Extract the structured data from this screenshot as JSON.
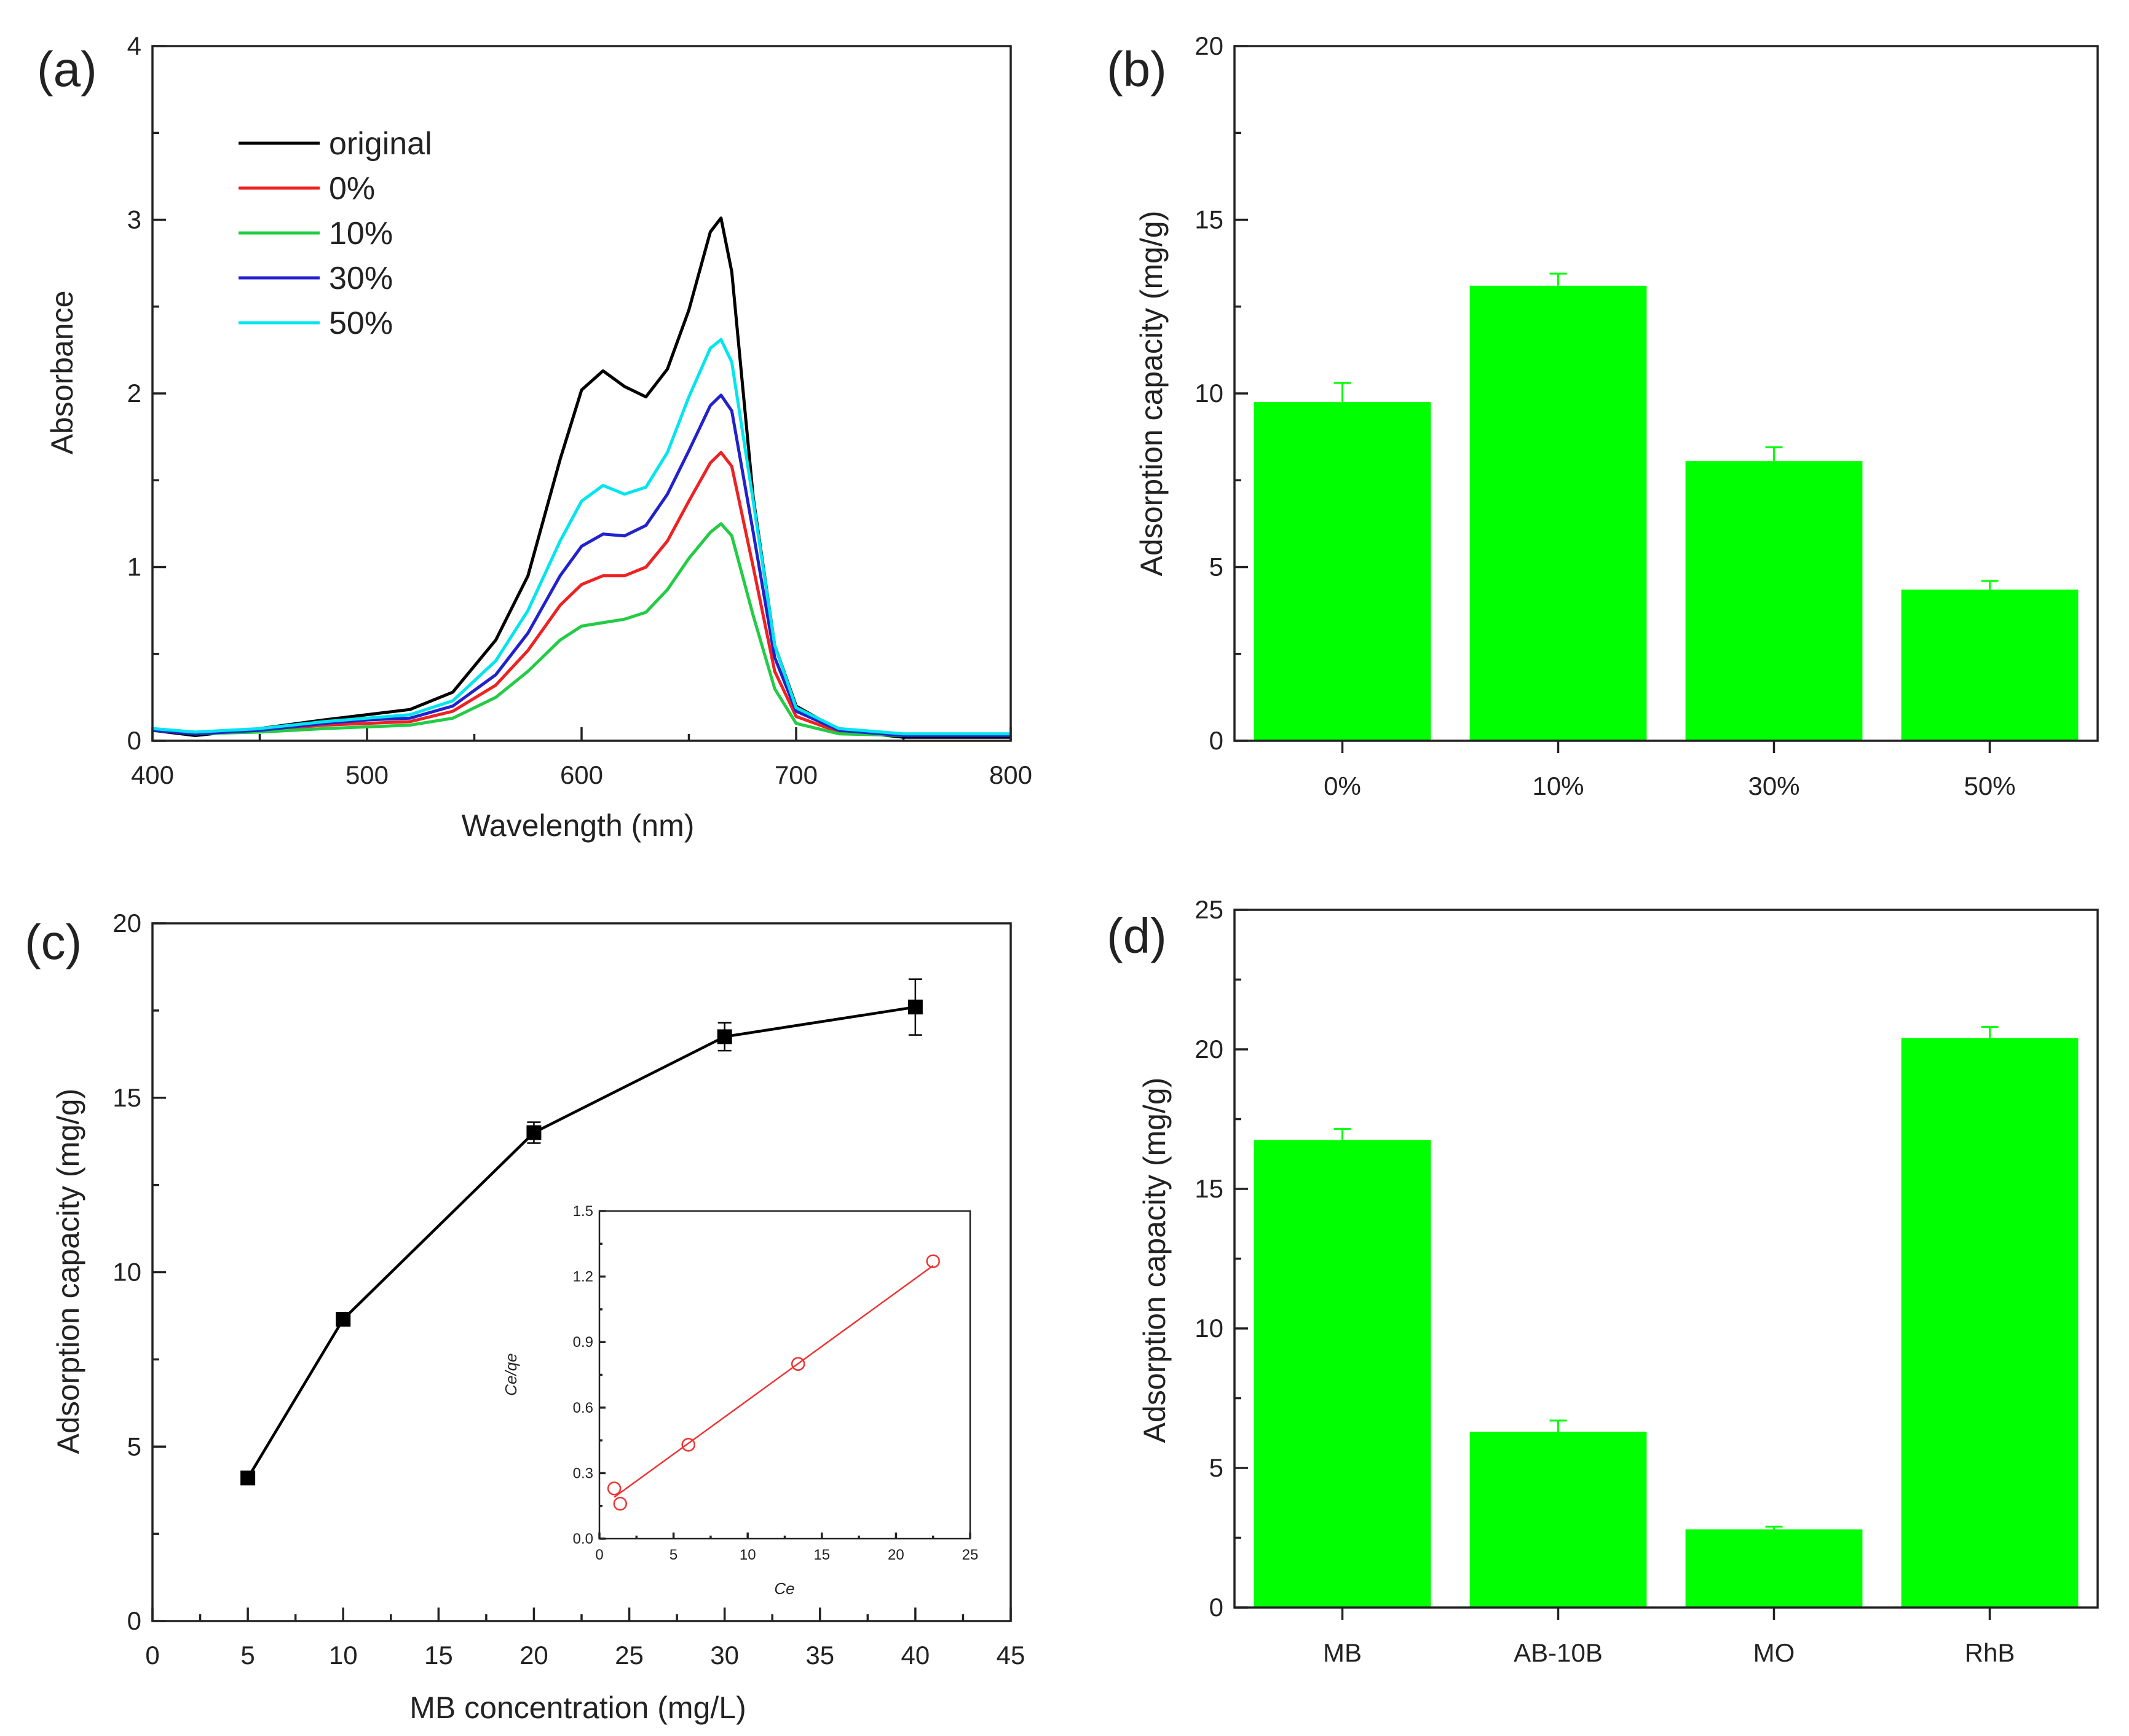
{
  "chart_data": [
    {
      "type": "line",
      "panel_label": "(a)",
      "title": "",
      "xlabel": "Wavelength (nm)",
      "ylabel": "Absorbance",
      "xlim": [
        400,
        800
      ],
      "ylim": [
        0,
        4
      ],
      "x_ticks": [
        400,
        500,
        600,
        700,
        800
      ],
      "y_ticks": [
        0,
        1,
        2,
        3,
        4
      ],
      "legend_position": "top-left",
      "series": [
        {
          "name": "original",
          "color": "#000000",
          "x": [
            400,
            420,
            450,
            480,
            500,
            520,
            540,
            560,
            575,
            590,
            600,
            610,
            620,
            630,
            640,
            650,
            660,
            665,
            670,
            680,
            690,
            700,
            720,
            750,
            800
          ],
          "y": [
            0.06,
            0.03,
            0.07,
            0.12,
            0.15,
            0.18,
            0.28,
            0.58,
            0.95,
            1.62,
            2.02,
            2.13,
            2.04,
            1.98,
            2.14,
            2.48,
            2.93,
            3.01,
            2.7,
            1.4,
            0.55,
            0.2,
            0.06,
            0.02,
            0.02
          ]
        },
        {
          "name": "0%",
          "color": "#ee2222",
          "x": [
            400,
            420,
            450,
            480,
            500,
            520,
            540,
            560,
            575,
            590,
            600,
            610,
            620,
            630,
            640,
            650,
            660,
            665,
            670,
            680,
            690,
            700,
            720,
            750,
            800
          ],
          "y": [
            0.06,
            0.04,
            0.06,
            0.09,
            0.1,
            0.11,
            0.17,
            0.32,
            0.52,
            0.78,
            0.9,
            0.95,
            0.95,
            1.0,
            1.15,
            1.38,
            1.6,
            1.66,
            1.58,
            1.0,
            0.4,
            0.14,
            0.05,
            0.03,
            0.03
          ]
        },
        {
          "name": "10%",
          "color": "#22cc44",
          "x": [
            400,
            420,
            450,
            480,
            500,
            520,
            540,
            560,
            575,
            590,
            600,
            610,
            620,
            630,
            640,
            650,
            660,
            665,
            670,
            680,
            690,
            700,
            720,
            750,
            800
          ],
          "y": [
            0.06,
            0.04,
            0.05,
            0.07,
            0.08,
            0.09,
            0.13,
            0.25,
            0.4,
            0.58,
            0.66,
            0.68,
            0.7,
            0.74,
            0.87,
            1.05,
            1.2,
            1.25,
            1.18,
            0.72,
            0.3,
            0.1,
            0.04,
            0.03,
            0.03
          ]
        },
        {
          "name": "30%",
          "color": "#2222cc",
          "x": [
            400,
            420,
            450,
            480,
            500,
            520,
            540,
            560,
            575,
            590,
            600,
            610,
            620,
            630,
            640,
            650,
            660,
            665,
            670,
            680,
            690,
            700,
            720,
            750,
            800
          ],
          "y": [
            0.06,
            0.04,
            0.06,
            0.1,
            0.12,
            0.13,
            0.2,
            0.38,
            0.62,
            0.95,
            1.12,
            1.19,
            1.18,
            1.24,
            1.42,
            1.67,
            1.93,
            1.99,
            1.9,
            1.2,
            0.48,
            0.17,
            0.06,
            0.03,
            0.03
          ]
        },
        {
          "name": "50%",
          "color": "#00e5ee",
          "x": [
            400,
            420,
            450,
            480,
            500,
            520,
            540,
            560,
            575,
            590,
            600,
            610,
            620,
            630,
            640,
            650,
            660,
            665,
            670,
            680,
            690,
            700,
            720,
            750,
            800
          ],
          "y": [
            0.07,
            0.05,
            0.07,
            0.11,
            0.13,
            0.15,
            0.23,
            0.46,
            0.75,
            1.15,
            1.38,
            1.47,
            1.42,
            1.46,
            1.66,
            1.98,
            2.26,
            2.31,
            2.18,
            1.38,
            0.55,
            0.19,
            0.07,
            0.04,
            0.04
          ]
        }
      ]
    },
    {
      "type": "bar",
      "panel_label": "(b)",
      "title": "",
      "xlabel": "",
      "ylabel": "Adsorption capacity (mg/g)",
      "ylim": [
        0,
        20
      ],
      "y_ticks": [
        0,
        5,
        10,
        15,
        20
      ],
      "bar_color": "#00ff00",
      "categories": [
        "0%",
        "10%",
        "30%",
        "50%"
      ],
      "values": [
        9.75,
        13.1,
        8.05,
        4.35
      ],
      "errors": [
        0.55,
        0.35,
        0.4,
        0.25
      ]
    },
    {
      "type": "line",
      "panel_label": "(c)",
      "title": "",
      "xlabel": "MB concentration (mg/L)",
      "ylabel": "Adsorption capacity (mg/g)",
      "xlim": [
        0,
        45
      ],
      "ylim": [
        0,
        20
      ],
      "x_ticks": [
        0,
        5,
        10,
        15,
        20,
        25,
        30,
        35,
        40,
        45
      ],
      "y_ticks": [
        0,
        5,
        10,
        15,
        20
      ],
      "series": [
        {
          "name": "",
          "color": "#000000",
          "marker": "square",
          "x": [
            5,
            10,
            20,
            30,
            40
          ],
          "y": [
            4.1,
            8.65,
            14.0,
            16.75,
            17.6
          ],
          "errors": [
            0.1,
            0.15,
            0.3,
            0.4,
            0.8
          ]
        }
      ],
      "inset": {
        "type": "scatter",
        "xlabel": "Ce",
        "ylabel": "Ce/qe",
        "xlim": [
          0,
          25
        ],
        "ylim": [
          0,
          1.5
        ],
        "x_ticks": [
          0,
          5,
          10,
          15,
          20,
          25
        ],
        "y_ticks": [
          0.0,
          0.3,
          0.6,
          0.9,
          1.2,
          1.5
        ],
        "color": "#ee3333",
        "points_x": [
          1.0,
          1.4,
          6.0,
          13.4,
          22.5
        ],
        "points_y": [
          0.23,
          0.16,
          0.43,
          0.8,
          1.27
        ],
        "fit_line": {
          "x": [
            1.0,
            22.5
          ],
          "y": [
            0.19,
            1.25
          ]
        }
      }
    },
    {
      "type": "bar",
      "panel_label": "(d)",
      "title": "",
      "xlabel": "",
      "ylabel": "Adsorption capacity (mg/g)",
      "ylim": [
        0,
        25
      ],
      "y_ticks": [
        0,
        5,
        10,
        15,
        20,
        25
      ],
      "bar_color": "#00ff00",
      "categories": [
        "MB",
        "AB-10B",
        "MO",
        "RhB"
      ],
      "values": [
        16.75,
        6.3,
        2.8,
        20.4
      ],
      "errors": [
        0.4,
        0.4,
        0.1,
        0.4
      ]
    }
  ]
}
